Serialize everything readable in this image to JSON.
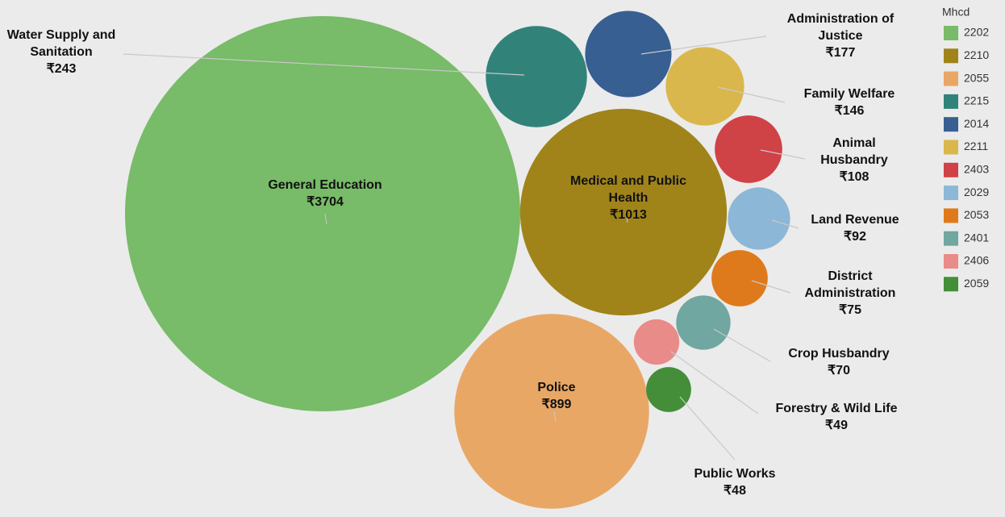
{
  "chart_data": {
    "type": "bubble",
    "legend_title": "Mhcd",
    "categories": [
      "General Education",
      "Medical and Public Health",
      "Police",
      "Water Supply and Sanitation",
      "Administration of Justice",
      "Family Welfare",
      "Animal Husbandry",
      "Land Revenue",
      "District Administration",
      "Crop Husbandry",
      "Forestry & Wild Life",
      "Public Works"
    ],
    "codes": [
      "2202",
      "2210",
      "2055",
      "2215",
      "2014",
      "2211",
      "2403",
      "2029",
      "2053",
      "2401",
      "2406",
      "2059"
    ],
    "values": [
      3704,
      1013,
      899,
      243,
      177,
      146,
      108,
      92,
      75,
      70,
      49,
      48
    ],
    "value_labels": [
      "₹3704",
      "₹1013",
      "₹899",
      "₹243",
      "₹177",
      "₹146",
      "₹108",
      "₹92",
      "₹75",
      "₹70",
      "₹49",
      "₹48"
    ],
    "colors": [
      "#78bb68",
      "#a0841a",
      "#e9a765",
      "#31837a",
      "#375f92",
      "#dab74c",
      "#cf4246",
      "#8db7d6",
      "#df7a1c",
      "#70a7a0",
      "#e98b88",
      "#448e3a"
    ],
    "legend": "right"
  }
}
